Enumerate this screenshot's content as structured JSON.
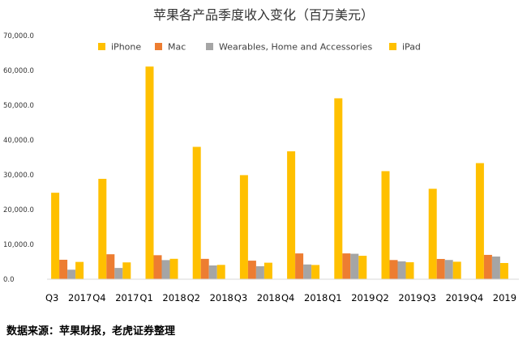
{
  "chart_data": {
    "type": "bar",
    "title": "苹果各产品季度收入变化（百万美元）",
    "categories": [
      "Q3 2017",
      "Q4 2017",
      "Q1 2018",
      "Q2 2018",
      "Q3 2018",
      "Q4 2018",
      "Q1 2019",
      "Q2 2019",
      "Q3 2019",
      "Q4 2019"
    ],
    "series": [
      {
        "name": "iPhone",
        "color": "#FFC000",
        "values": [
          24846,
          28846,
          61104,
          38032,
          29906,
          36755,
          51982,
          31051,
          25986,
          33362
        ]
      },
      {
        "name": "Mac",
        "color": "#ED7D31",
        "values": [
          5592,
          7170,
          6895,
          5848,
          5330,
          7411,
          7416,
          5513,
          5820,
          6991
        ]
      },
      {
        "name": "Wearables, Home and Accessories",
        "color": "#A5A5A5",
        "values": [
          2735,
          3231,
          5489,
          3954,
          3740,
          4234,
          7308,
          5129,
          5525,
          6520
        ]
      },
      {
        "name": "iPad",
        "color": "#FFC000",
        "values": [
          4969,
          4831,
          5862,
          4113,
          4741,
          4089,
          6729,
          4872,
          5023,
          4656
        ]
      }
    ],
    "ylim": [
      0,
      70000
    ],
    "yticks": [
      "0.0",
      "10,000.0",
      "20,000.0",
      "30,000.0",
      "40,000.0",
      "50,000.0",
      "60,000.0",
      "70,000.0"
    ],
    "ytick_values": [
      0,
      10000,
      20000,
      30000,
      40000,
      50000,
      60000,
      70000
    ],
    "legend_position": "top",
    "grid": false
  },
  "source_text": "数据来源：苹果财报，老虎证券整理"
}
